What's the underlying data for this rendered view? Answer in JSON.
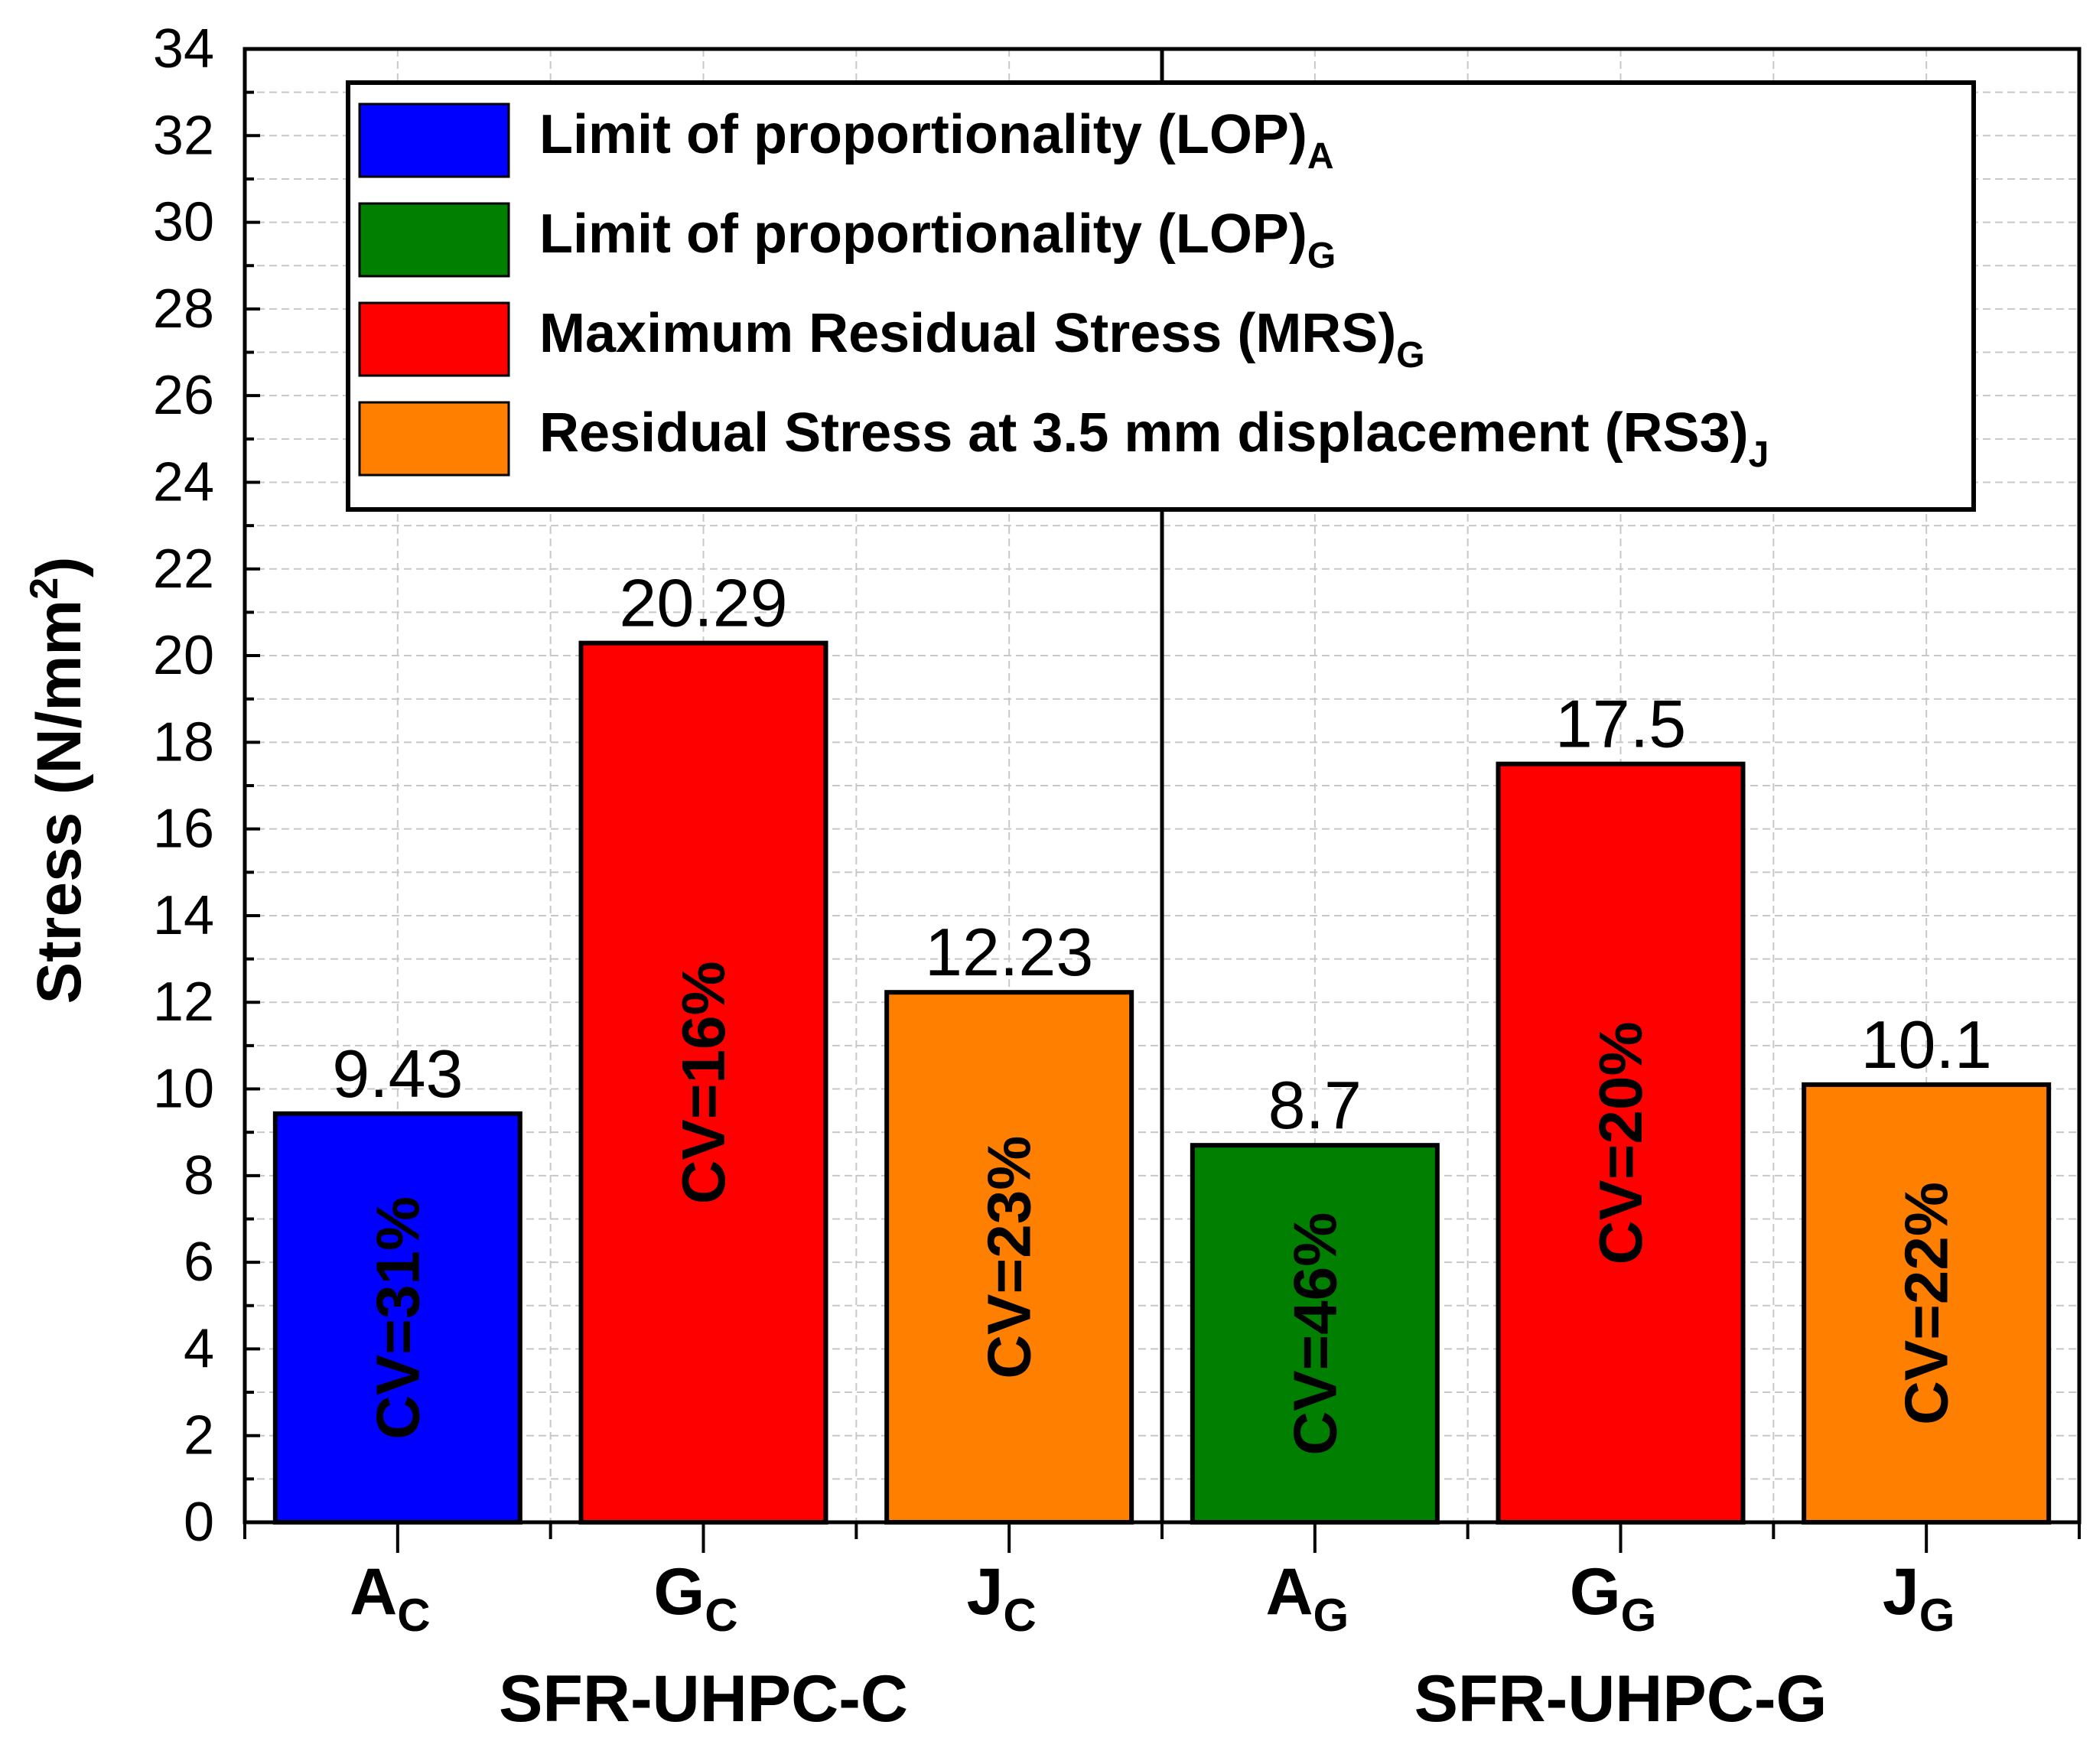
{
  "chart_data": {
    "type": "bar",
    "ylabel": "Stress (N/mm",
    "ylabel_sup": "2",
    "ylabel_close": ")",
    "ylim": [
      0,
      34
    ],
    "yticks": [
      0,
      2,
      4,
      6,
      8,
      10,
      12,
      14,
      16,
      18,
      20,
      22,
      24,
      26,
      28,
      30,
      32,
      34
    ],
    "grid": true,
    "legend_position": "top",
    "legend": [
      {
        "label": "Limit of proportionality (LOP)",
        "sub": "A",
        "color": "#0000ff"
      },
      {
        "label": "Limit of proportionality (LOP)",
        "sub": "G",
        "color": "#007f00"
      },
      {
        "label": "Maximum Residual Stress (MRS)",
        "sub": "G",
        "color": "#ff0000"
      },
      {
        "label": "Residual Stress at 3.5 mm displacement (RS3)",
        "sub": "J",
        "color": "#ff7f00"
      }
    ],
    "groups": [
      {
        "name": "SFR-UHPC-C",
        "bars": [
          0,
          1,
          2
        ]
      },
      {
        "name": "SFR-UHPC-G",
        "bars": [
          3,
          4,
          5
        ]
      }
    ],
    "bars": [
      {
        "cat": "A",
        "sub": "C",
        "value": 9.43,
        "label": "9.43",
        "cv": "CV=31%",
        "color": "#0000ff"
      },
      {
        "cat": "G",
        "sub": "C",
        "value": 20.29,
        "label": "20.29",
        "cv": "CV=16%",
        "color": "#ff0000"
      },
      {
        "cat": "J",
        "sub": "C",
        "value": 12.23,
        "label": "12.23",
        "cv": "CV=23%",
        "color": "#ff7f00"
      },
      {
        "cat": "A",
        "sub": "G",
        "value": 8.7,
        "label": "8.7",
        "cv": "CV=46%",
        "color": "#007f00"
      },
      {
        "cat": "G",
        "sub": "G",
        "value": 17.5,
        "label": "17.5",
        "cv": "CV=20%",
        "color": "#ff0000"
      },
      {
        "cat": "J",
        "sub": "G",
        "value": 10.1,
        "label": "10.1",
        "cv": "CV=22%",
        "color": "#ff7f00"
      }
    ]
  }
}
